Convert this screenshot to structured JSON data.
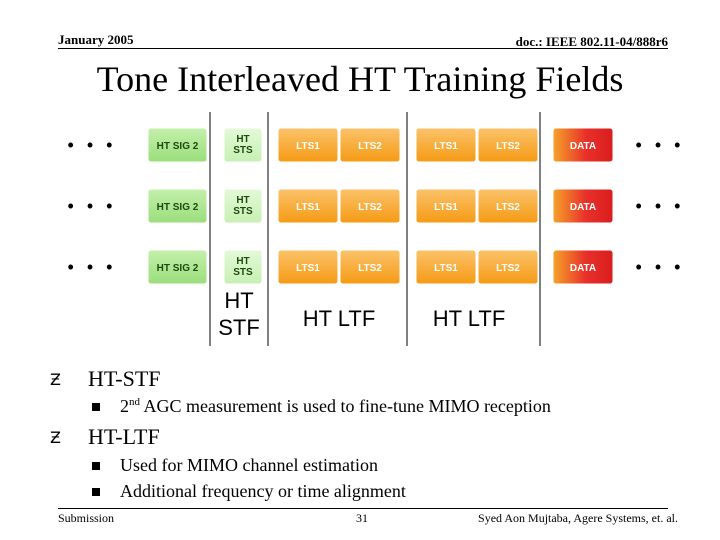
{
  "header": {
    "date": "January 2005",
    "doc_id": "doc.: IEEE 802.11-04/888r6"
  },
  "title": "Tone Interleaved HT Training Fields",
  "diagram": {
    "ellipsis": "• • •",
    "rows": [
      [
        "HT SIG 2",
        "HT|STS",
        "LTS1",
        "LTS2",
        "LTS1",
        "LTS2",
        "DATA"
      ],
      [
        "HT SIG 2",
        "HT|STS",
        "LTS1",
        "LTS2",
        "LTS1",
        "LTS2",
        "DATA"
      ],
      [
        "HT SIG 2",
        "HT|STS",
        "LTS1",
        "LTS2",
        "LTS1",
        "LTS2",
        "DATA"
      ]
    ],
    "groups": [
      "HT|STF",
      "HT LTF",
      "HT LTF"
    ],
    "colors": {
      "sig": "#9ade7c",
      "sts": "#c7f0b3",
      "lts": "#f59a14",
      "lts_light": "#f7b33a",
      "data": "#e8302a"
    }
  },
  "bullets": [
    {
      "icon": "z-bullet-icon",
      "text": "HT-STF",
      "sub": [
        {
          "sup_num": "2",
          "sup": "nd",
          "text": " AGC measurement is used to fine-tune MIMO reception"
        }
      ]
    },
    {
      "icon": "z-bullet-icon",
      "text": "HT-LTF",
      "sub": [
        {
          "text": "Used for MIMO channel estimation"
        },
        {
          "text": "Additional frequency or time alignment"
        }
      ]
    }
  ],
  "footer": {
    "left": "Submission",
    "page": "31",
    "author": "Syed Aon Mujtaba, Agere Systems, et. al."
  }
}
